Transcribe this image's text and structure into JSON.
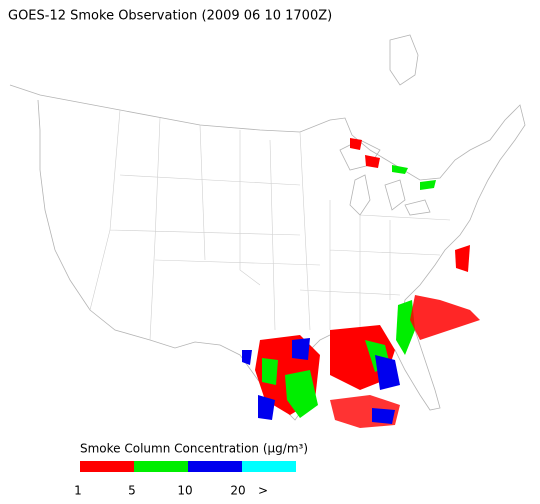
{
  "header": {
    "title": "GOES-12 Smoke Observation (2009 06 10  1700Z)"
  },
  "legend": {
    "title": "Smoke Column Concentration (μg/m³)",
    "colors": [
      "#ff0000",
      "#00ee00",
      "#0000ee",
      "#00ffff"
    ],
    "labels": [
      "1",
      "5",
      "10",
      "20",
      ">"
    ]
  }
}
